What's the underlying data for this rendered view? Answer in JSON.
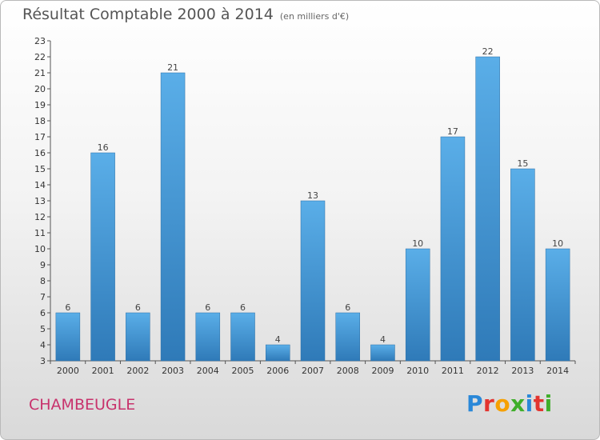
{
  "header": {
    "title": "Résultat Comptable 2000 à 2014",
    "subtitle": "(en milliers d'€)"
  },
  "footer": {
    "commune": "CHAMBEUGLE",
    "logo_text": "Proxiti"
  },
  "colors": {
    "bar_top": "#5aaee8",
    "bar_bottom": "#2f7ab8",
    "commune": "#c8326c"
  },
  "chart_data": {
    "type": "bar",
    "title": "Résultat Comptable 2000 à 2014",
    "subtitle": "(en milliers d'€)",
    "categories": [
      "2000",
      "2001",
      "2002",
      "2003",
      "2004",
      "2005",
      "2006",
      "2007",
      "2008",
      "2009",
      "2010",
      "2011",
      "2012",
      "2013",
      "2014"
    ],
    "values": [
      6,
      16,
      6,
      21,
      6,
      6,
      4,
      13,
      6,
      4,
      10,
      17,
      22,
      15,
      10
    ],
    "ylim": [
      3,
      23
    ],
    "yticks": [
      3,
      4,
      5,
      6,
      7,
      8,
      9,
      10,
      11,
      12,
      13,
      14,
      15,
      16,
      17,
      18,
      19,
      20,
      21,
      22,
      23
    ],
    "grid": false,
    "data_labels": true
  }
}
